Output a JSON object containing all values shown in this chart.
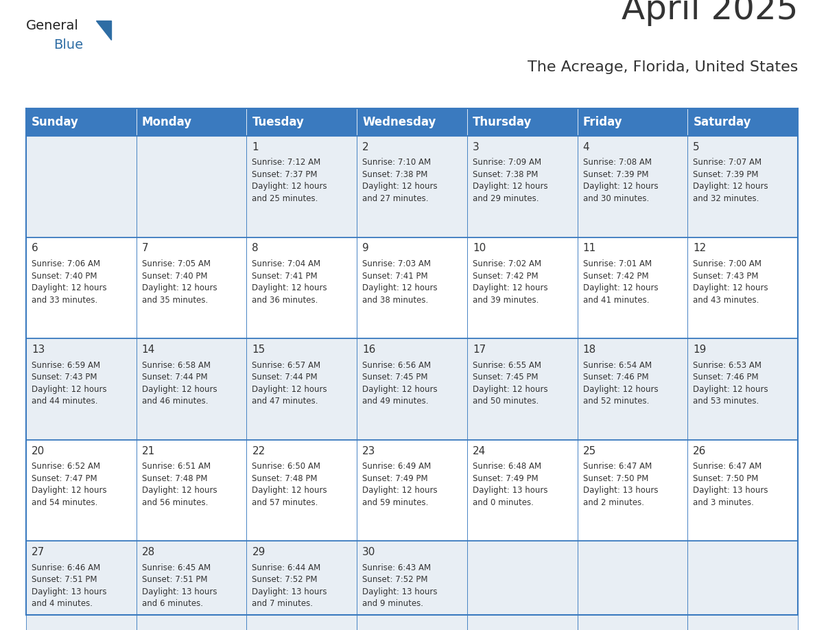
{
  "title": "April 2025",
  "subtitle": "The Acreage, Florida, United States",
  "header_bg": "#3a7abf",
  "header_text": "#ffffff",
  "row_bg_even": "#e8eef4",
  "row_bg_odd": "#ffffff",
  "border_color": "#3a7abf",
  "day_headers": [
    "Sunday",
    "Monday",
    "Tuesday",
    "Wednesday",
    "Thursday",
    "Friday",
    "Saturday"
  ],
  "weeks": [
    [
      {
        "day": "",
        "info": ""
      },
      {
        "day": "",
        "info": ""
      },
      {
        "day": "1",
        "info": "Sunrise: 7:12 AM\nSunset: 7:37 PM\nDaylight: 12 hours\nand 25 minutes."
      },
      {
        "day": "2",
        "info": "Sunrise: 7:10 AM\nSunset: 7:38 PM\nDaylight: 12 hours\nand 27 minutes."
      },
      {
        "day": "3",
        "info": "Sunrise: 7:09 AM\nSunset: 7:38 PM\nDaylight: 12 hours\nand 29 minutes."
      },
      {
        "day": "4",
        "info": "Sunrise: 7:08 AM\nSunset: 7:39 PM\nDaylight: 12 hours\nand 30 minutes."
      },
      {
        "day": "5",
        "info": "Sunrise: 7:07 AM\nSunset: 7:39 PM\nDaylight: 12 hours\nand 32 minutes."
      }
    ],
    [
      {
        "day": "6",
        "info": "Sunrise: 7:06 AM\nSunset: 7:40 PM\nDaylight: 12 hours\nand 33 minutes."
      },
      {
        "day": "7",
        "info": "Sunrise: 7:05 AM\nSunset: 7:40 PM\nDaylight: 12 hours\nand 35 minutes."
      },
      {
        "day": "8",
        "info": "Sunrise: 7:04 AM\nSunset: 7:41 PM\nDaylight: 12 hours\nand 36 minutes."
      },
      {
        "day": "9",
        "info": "Sunrise: 7:03 AM\nSunset: 7:41 PM\nDaylight: 12 hours\nand 38 minutes."
      },
      {
        "day": "10",
        "info": "Sunrise: 7:02 AM\nSunset: 7:42 PM\nDaylight: 12 hours\nand 39 minutes."
      },
      {
        "day": "11",
        "info": "Sunrise: 7:01 AM\nSunset: 7:42 PM\nDaylight: 12 hours\nand 41 minutes."
      },
      {
        "day": "12",
        "info": "Sunrise: 7:00 AM\nSunset: 7:43 PM\nDaylight: 12 hours\nand 43 minutes."
      }
    ],
    [
      {
        "day": "13",
        "info": "Sunrise: 6:59 AM\nSunset: 7:43 PM\nDaylight: 12 hours\nand 44 minutes."
      },
      {
        "day": "14",
        "info": "Sunrise: 6:58 AM\nSunset: 7:44 PM\nDaylight: 12 hours\nand 46 minutes."
      },
      {
        "day": "15",
        "info": "Sunrise: 6:57 AM\nSunset: 7:44 PM\nDaylight: 12 hours\nand 47 minutes."
      },
      {
        "day": "16",
        "info": "Sunrise: 6:56 AM\nSunset: 7:45 PM\nDaylight: 12 hours\nand 49 minutes."
      },
      {
        "day": "17",
        "info": "Sunrise: 6:55 AM\nSunset: 7:45 PM\nDaylight: 12 hours\nand 50 minutes."
      },
      {
        "day": "18",
        "info": "Sunrise: 6:54 AM\nSunset: 7:46 PM\nDaylight: 12 hours\nand 52 minutes."
      },
      {
        "day": "19",
        "info": "Sunrise: 6:53 AM\nSunset: 7:46 PM\nDaylight: 12 hours\nand 53 minutes."
      }
    ],
    [
      {
        "day": "20",
        "info": "Sunrise: 6:52 AM\nSunset: 7:47 PM\nDaylight: 12 hours\nand 54 minutes."
      },
      {
        "day": "21",
        "info": "Sunrise: 6:51 AM\nSunset: 7:48 PM\nDaylight: 12 hours\nand 56 minutes."
      },
      {
        "day": "22",
        "info": "Sunrise: 6:50 AM\nSunset: 7:48 PM\nDaylight: 12 hours\nand 57 minutes."
      },
      {
        "day": "23",
        "info": "Sunrise: 6:49 AM\nSunset: 7:49 PM\nDaylight: 12 hours\nand 59 minutes."
      },
      {
        "day": "24",
        "info": "Sunrise: 6:48 AM\nSunset: 7:49 PM\nDaylight: 13 hours\nand 0 minutes."
      },
      {
        "day": "25",
        "info": "Sunrise: 6:47 AM\nSunset: 7:50 PM\nDaylight: 13 hours\nand 2 minutes."
      },
      {
        "day": "26",
        "info": "Sunrise: 6:47 AM\nSunset: 7:50 PM\nDaylight: 13 hours\nand 3 minutes."
      }
    ],
    [
      {
        "day": "27",
        "info": "Sunrise: 6:46 AM\nSunset: 7:51 PM\nDaylight: 13 hours\nand 4 minutes."
      },
      {
        "day": "28",
        "info": "Sunrise: 6:45 AM\nSunset: 7:51 PM\nDaylight: 13 hours\nand 6 minutes."
      },
      {
        "day": "29",
        "info": "Sunrise: 6:44 AM\nSunset: 7:52 PM\nDaylight: 13 hours\nand 7 minutes."
      },
      {
        "day": "30",
        "info": "Sunrise: 6:43 AM\nSunset: 7:52 PM\nDaylight: 13 hours\nand 9 minutes."
      },
      {
        "day": "",
        "info": ""
      },
      {
        "day": "",
        "info": ""
      },
      {
        "day": "",
        "info": ""
      }
    ]
  ],
  "logo_triangle_color": "#2e6da4",
  "text_color": "#333333",
  "info_fontsize": 8.5,
  "day_num_fontsize": 11,
  "header_fontsize": 12,
  "title_fontsize": 36,
  "subtitle_fontsize": 16
}
